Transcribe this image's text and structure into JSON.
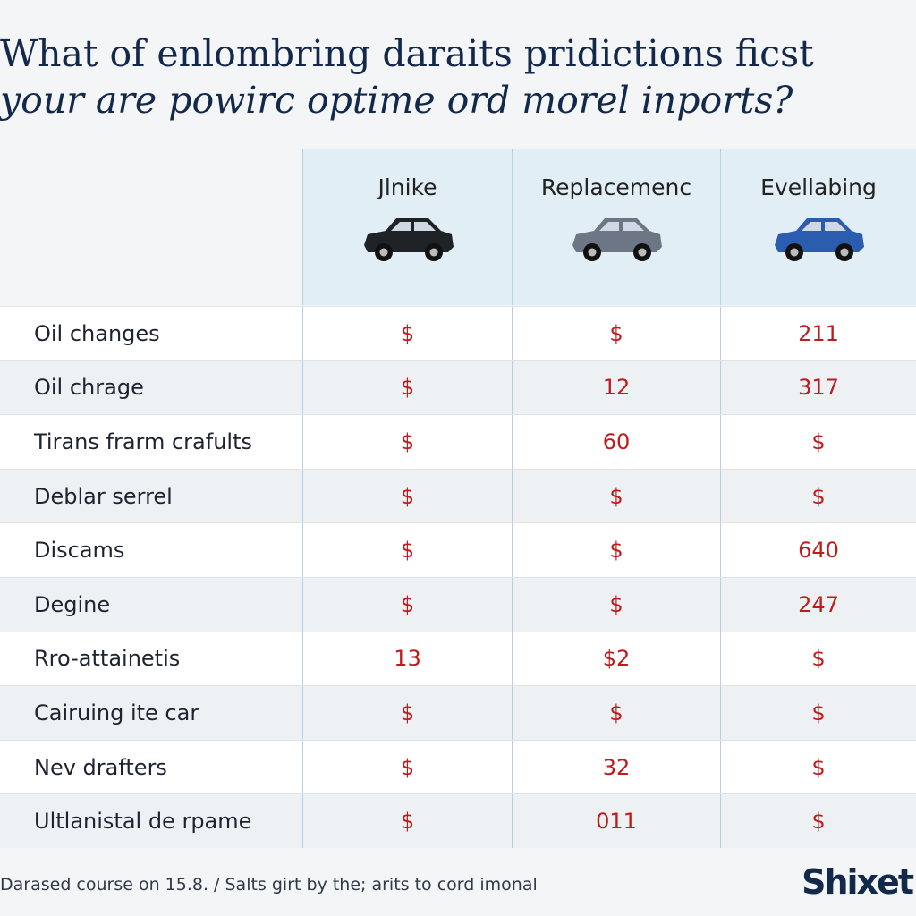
{
  "header": {
    "title_line1": "What of enlombring daraits pridictions ficst",
    "title_line2": "your are powirc optime ord morel inports?"
  },
  "table": {
    "columns": [
      "Jlnike",
      "Replacemenc",
      "Evellabing"
    ],
    "rows": [
      {
        "label": "Oil changes",
        "cells": [
          "$",
          "$",
          "211"
        ]
      },
      {
        "label": "Oil chrage",
        "cells": [
          "$",
          "12",
          "317"
        ]
      },
      {
        "label": "Tirans frarm crafults",
        "cells": [
          "$",
          "60",
          "$"
        ]
      },
      {
        "label": "Deblar serrel",
        "cells": [
          "$",
          "$",
          "$"
        ]
      },
      {
        "label": "Discams",
        "cells": [
          "$",
          "$",
          "640"
        ]
      },
      {
        "label": "Degine",
        "cells": [
          "$",
          "$",
          "247"
        ]
      },
      {
        "label": "Rro-attainetis",
        "cells": [
          "13",
          "$2",
          "$"
        ]
      },
      {
        "label": "Cairuing ite car",
        "cells": [
          "$",
          "$",
          "$"
        ]
      },
      {
        "label": "Nev drafters",
        "cells": [
          "$",
          "32",
          "$"
        ]
      },
      {
        "label": "Ultlanistal de rpame",
        "cells": [
          "$",
          "011",
          "$"
        ]
      }
    ]
  },
  "footer": {
    "note": "Darased course on 15.8. / Salts girt by the; arits to cord imonal",
    "logo": "Shixet"
  }
}
